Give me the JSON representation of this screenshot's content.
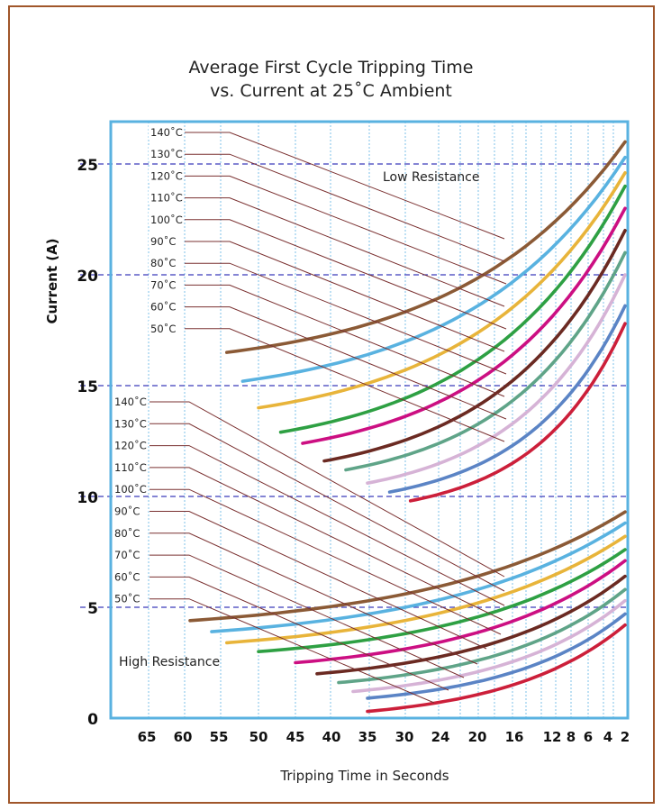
{
  "chart_data": {
    "type": "line",
    "title_line1": "Average First Cycle Tripping Time",
    "title_line2": "vs. Current at 25˚C Ambient",
    "ylabel": "Current (A)",
    "xlabel": "Tripping Time in Seconds",
    "ylim": [
      0,
      26
    ],
    "y_ticks": [
      "0",
      "5",
      "10",
      "15",
      "20",
      "25"
    ],
    "x_ticks": [
      "65",
      "60",
      "55",
      "50",
      "45",
      "40",
      "35",
      "30",
      "24",
      "20",
      "16",
      "12",
      "8",
      "6",
      "4",
      "2"
    ],
    "grid": "vertical dotted lines, dashed lines at 5, 10, 15, 20, 25 A",
    "annotations": [
      "Low Resistance",
      "High Resistance"
    ],
    "colors": {
      "140": "#8b5a36",
      "130": "#59b2e0",
      "120": "#e8b43a",
      "110": "#2ea043",
      "100": "#cc0f82",
      "90": "#6b2a22",
      "80": "#5fa488",
      "70": "#d6b3d6",
      "60": "#5b84c5",
      "50": "#cc1f3a",
      "frame": "#a0562a",
      "plot_border": "#59b2e0",
      "leader": "#7a3030",
      "h_grid": "#3b3bbb"
    },
    "groups": [
      {
        "name": "Low Resistance",
        "series": [
          {
            "name": "140˚C",
            "color": "140",
            "start_time": 54,
            "start_current": 16.5,
            "end_current": 26
          },
          {
            "name": "130˚C",
            "color": "130",
            "start_time": 52,
            "start_current": 15.2,
            "end_current": 25.3
          },
          {
            "name": "120˚C",
            "color": "120",
            "start_time": 50,
            "start_current": 14.0,
            "end_current": 24.6
          },
          {
            "name": "110˚C",
            "color": "110",
            "start_time": 47,
            "start_current": 12.9,
            "end_current": 24.0
          },
          {
            "name": "100˚C",
            "color": "100",
            "start_time": 44,
            "start_current": 12.4,
            "end_current": 23.0
          },
          {
            "name": "90˚C",
            "color": "90",
            "start_time": 41,
            "start_current": 11.6,
            "end_current": 22.0
          },
          {
            "name": "80˚C",
            "color": "80",
            "start_time": 38,
            "start_current": 11.2,
            "end_current": 21.0
          },
          {
            "name": "70˚C",
            "color": "70",
            "start_time": 35,
            "start_current": 10.6,
            "end_current": 20.0
          },
          {
            "name": "60˚C",
            "color": "60",
            "start_time": 32,
            "start_current": 10.2,
            "end_current": 18.6
          },
          {
            "name": "50˚C",
            "color": "50",
            "start_time": 29,
            "start_current": 9.8,
            "end_current": 17.8
          }
        ]
      },
      {
        "name": "High Resistance",
        "series": [
          {
            "name": "140˚C",
            "color": "140",
            "start_time": 59,
            "start_current": 4.4,
            "end_current": 9.3
          },
          {
            "name": "130˚C",
            "color": "130",
            "start_time": 56,
            "start_current": 3.9,
            "end_current": 8.8
          },
          {
            "name": "120˚C",
            "color": "120",
            "start_time": 54,
            "start_current": 3.4,
            "end_current": 8.2
          },
          {
            "name": "110˚C",
            "color": "110",
            "start_time": 50,
            "start_current": 3.0,
            "end_current": 7.6
          },
          {
            "name": "100˚C",
            "color": "100",
            "start_time": 45,
            "start_current": 2.5,
            "end_current": 7.1
          },
          {
            "name": "90˚C",
            "color": "90",
            "start_time": 42,
            "start_current": 2.0,
            "end_current": 6.4
          },
          {
            "name": "80˚C",
            "color": "80",
            "start_time": 39,
            "start_current": 1.6,
            "end_current": 5.8
          },
          {
            "name": "70˚C",
            "color": "70",
            "start_time": 37,
            "start_current": 1.2,
            "end_current": 5.3
          },
          {
            "name": "60˚C",
            "color": "60",
            "start_time": 35,
            "start_current": 0.9,
            "end_current": 4.7
          },
          {
            "name": "50˚C",
            "color": "50",
            "start_time": 35,
            "start_current": 0.3,
            "end_current": 4.2
          }
        ]
      }
    ]
  }
}
